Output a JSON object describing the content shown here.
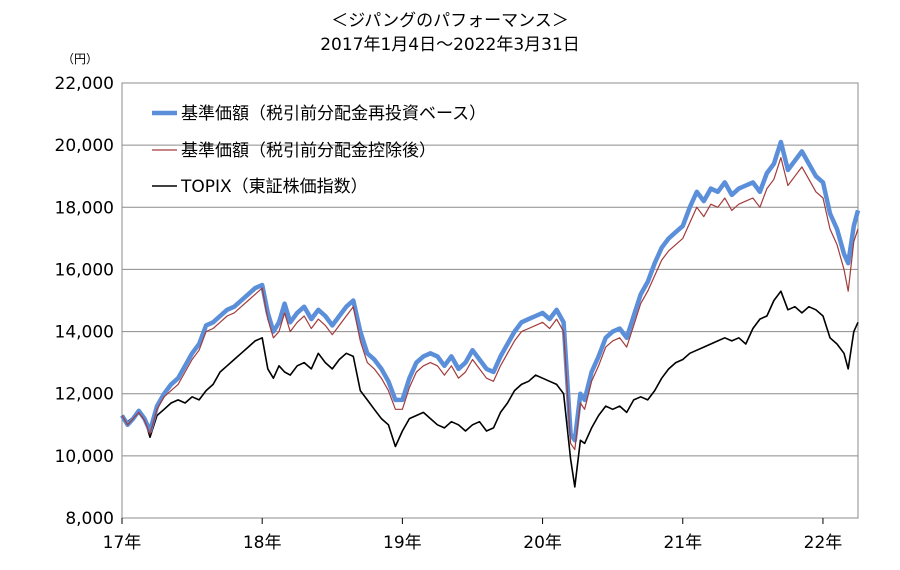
{
  "title": "＜ジパングのパフォーマンス＞",
  "subtitle": "2017年1月4日～2022年3月31日",
  "unit": "（円）",
  "chart_data": {
    "type": "line",
    "title": "＜ジパングのパフォーマンス＞",
    "subtitle": "2017年1月4日～2022年3月31日",
    "ylabel": "（円）",
    "xlabel": "",
    "ylim": [
      8000,
      22000
    ],
    "yticks": [
      "8,000",
      "10,000",
      "12,000",
      "14,000",
      "16,000",
      "18,000",
      "20,000",
      "22,000"
    ],
    "ytick_values": [
      8000,
      10000,
      12000,
      14000,
      16000,
      18000,
      20000,
      22000
    ],
    "xlim": [
      2017.0,
      2022.25
    ],
    "xticks": [
      "17年",
      "18年",
      "19年",
      "20年",
      "21年",
      "22年"
    ],
    "xtick_values": [
      2017,
      2018,
      2019,
      2020,
      2021,
      2022
    ],
    "grid": "horizontal",
    "legend_position": "top-left",
    "series": [
      {
        "name": "基準価額（税引前分配金再投資ベース）",
        "color": "#5b8fd9",
        "style": "thick",
        "x": [
          2017.0,
          2017.04,
          2017.08,
          2017.12,
          2017.16,
          2017.2,
          2017.25,
          2017.3,
          2017.35,
          2017.4,
          2017.45,
          2017.5,
          2017.55,
          2017.6,
          2017.65,
          2017.7,
          2017.75,
          2017.8,
          2017.85,
          2017.9,
          2017.95,
          2018.0,
          2018.04,
          2018.08,
          2018.12,
          2018.16,
          2018.2,
          2018.25,
          2018.3,
          2018.35,
          2018.4,
          2018.45,
          2018.5,
          2018.55,
          2018.6,
          2018.65,
          2018.7,
          2018.75,
          2018.8,
          2018.85,
          2018.9,
          2018.95,
          2019.0,
          2019.05,
          2019.1,
          2019.15,
          2019.2,
          2019.25,
          2019.3,
          2019.35,
          2019.4,
          2019.45,
          2019.5,
          2019.55,
          2019.6,
          2019.65,
          2019.7,
          2019.75,
          2019.8,
          2019.85,
          2019.9,
          2019.95,
          2020.0,
          2020.05,
          2020.1,
          2020.15,
          2020.2,
          2020.23,
          2020.27,
          2020.3,
          2020.35,
          2020.4,
          2020.45,
          2020.5,
          2020.55,
          2020.6,
          2020.65,
          2020.7,
          2020.75,
          2020.8,
          2020.85,
          2020.9,
          2020.95,
          2021.0,
          2021.05,
          2021.1,
          2021.15,
          2021.2,
          2021.25,
          2021.3,
          2021.35,
          2021.4,
          2021.45,
          2021.5,
          2021.55,
          2021.6,
          2021.65,
          2021.7,
          2021.75,
          2021.8,
          2021.85,
          2021.9,
          2021.95,
          2022.0,
          2022.05,
          2022.1,
          2022.15,
          2022.18,
          2022.22,
          2022.25
        ],
        "values": [
          11300,
          11000,
          11200,
          11450,
          11200,
          10800,
          11600,
          12000,
          12300,
          12500,
          12900,
          13300,
          13600,
          14200,
          14300,
          14500,
          14700,
          14800,
          15000,
          15200,
          15400,
          15500,
          14600,
          14000,
          14300,
          14900,
          14300,
          14600,
          14800,
          14400,
          14700,
          14500,
          14200,
          14500,
          14800,
          15000,
          14000,
          13300,
          13100,
          12800,
          12400,
          11800,
          11800,
          12500,
          13000,
          13200,
          13300,
          13200,
          12900,
          13200,
          12800,
          13000,
          13400,
          13100,
          12800,
          12700,
          13200,
          13600,
          14000,
          14300,
          14400,
          14500,
          14600,
          14400,
          14700,
          14300,
          10700,
          10500,
          12000,
          11800,
          12700,
          13200,
          13800,
          14000,
          14100,
          13800,
          14500,
          15200,
          15600,
          16200,
          16700,
          17000,
          17200,
          17400,
          18000,
          18500,
          18200,
          18600,
          18500,
          18800,
          18400,
          18600,
          18700,
          18800,
          18500,
          19100,
          19400,
          20100,
          19200,
          19500,
          19800,
          19400,
          19000,
          18800,
          17800,
          17300,
          16500,
          16200,
          17400,
          17900
        ]
      },
      {
        "name": "基準価額（税引前分配金控除後）",
        "color": "#a33b3b",
        "style": "thin",
        "x": [
          2017.0,
          2017.04,
          2017.08,
          2017.12,
          2017.16,
          2017.2,
          2017.25,
          2017.3,
          2017.35,
          2017.4,
          2017.45,
          2017.5,
          2017.55,
          2017.6,
          2017.65,
          2017.7,
          2017.75,
          2017.8,
          2017.85,
          2017.9,
          2017.95,
          2018.0,
          2018.04,
          2018.08,
          2018.12,
          2018.16,
          2018.2,
          2018.25,
          2018.3,
          2018.35,
          2018.4,
          2018.45,
          2018.5,
          2018.55,
          2018.6,
          2018.65,
          2018.7,
          2018.75,
          2018.8,
          2018.85,
          2018.9,
          2018.95,
          2019.0,
          2019.05,
          2019.1,
          2019.15,
          2019.2,
          2019.25,
          2019.3,
          2019.35,
          2019.4,
          2019.45,
          2019.5,
          2019.55,
          2019.6,
          2019.65,
          2019.7,
          2019.75,
          2019.8,
          2019.85,
          2019.9,
          2019.95,
          2020.0,
          2020.05,
          2020.1,
          2020.15,
          2020.2,
          2020.23,
          2020.27,
          2020.3,
          2020.35,
          2020.4,
          2020.45,
          2020.5,
          2020.55,
          2020.6,
          2020.65,
          2020.7,
          2020.75,
          2020.8,
          2020.85,
          2020.9,
          2020.95,
          2021.0,
          2021.05,
          2021.1,
          2021.15,
          2021.2,
          2021.25,
          2021.3,
          2021.35,
          2021.4,
          2021.45,
          2021.5,
          2021.55,
          2021.6,
          2021.65,
          2021.7,
          2021.75,
          2021.8,
          2021.85,
          2021.9,
          2021.95,
          2022.0,
          2022.05,
          2022.1,
          2022.15,
          2022.18,
          2022.22,
          2022.25
        ],
        "values": [
          11300,
          11000,
          11200,
          11400,
          11150,
          10700,
          11500,
          11900,
          12100,
          12300,
          12700,
          13100,
          13400,
          14000,
          14100,
          14300,
          14500,
          14600,
          14800,
          15000,
          15200,
          15400,
          14400,
          13800,
          14000,
          14600,
          14000,
          14300,
          14500,
          14100,
          14400,
          14200,
          13900,
          14200,
          14500,
          14800,
          13700,
          13000,
          12800,
          12500,
          12100,
          11500,
          11500,
          12200,
          12700,
          12900,
          13000,
          12900,
          12600,
          12900,
          12500,
          12700,
          13100,
          12800,
          12500,
          12400,
          12900,
          13300,
          13700,
          14000,
          14100,
          14200,
          14300,
          14100,
          14400,
          14000,
          10400,
          10200,
          11700,
          11500,
          12400,
          12900,
          13500,
          13700,
          13800,
          13500,
          14200,
          14900,
          15300,
          15800,
          16300,
          16600,
          16800,
          17000,
          17500,
          18000,
          17700,
          18100,
          18000,
          18300,
          17900,
          18100,
          18200,
          18300,
          18000,
          18600,
          18900,
          19600,
          18700,
          19000,
          19300,
          18900,
          18500,
          18300,
          17300,
          16800,
          16000,
          15300,
          16900,
          17300
        ]
      },
      {
        "name": "TOPIX（東証株価指数）",
        "color": "#000000",
        "style": "medium",
        "x": [
          2017.0,
          2017.04,
          2017.08,
          2017.12,
          2017.16,
          2017.2,
          2017.25,
          2017.3,
          2017.35,
          2017.4,
          2017.45,
          2017.5,
          2017.55,
          2017.6,
          2017.65,
          2017.7,
          2017.75,
          2017.8,
          2017.85,
          2017.9,
          2017.95,
          2018.0,
          2018.04,
          2018.08,
          2018.12,
          2018.16,
          2018.2,
          2018.25,
          2018.3,
          2018.35,
          2018.4,
          2018.45,
          2018.5,
          2018.55,
          2018.6,
          2018.65,
          2018.7,
          2018.75,
          2018.8,
          2018.85,
          2018.9,
          2018.95,
          2019.0,
          2019.05,
          2019.1,
          2019.15,
          2019.2,
          2019.25,
          2019.3,
          2019.35,
          2019.4,
          2019.45,
          2019.5,
          2019.55,
          2019.6,
          2019.65,
          2019.7,
          2019.75,
          2019.8,
          2019.85,
          2019.9,
          2019.95,
          2020.0,
          2020.05,
          2020.1,
          2020.15,
          2020.2,
          2020.23,
          2020.27,
          2020.3,
          2020.35,
          2020.4,
          2020.45,
          2020.5,
          2020.55,
          2020.6,
          2020.65,
          2020.7,
          2020.75,
          2020.8,
          2020.85,
          2020.9,
          2020.95,
          2021.0,
          2021.05,
          2021.1,
          2021.15,
          2021.2,
          2021.25,
          2021.3,
          2021.35,
          2021.4,
          2021.45,
          2021.5,
          2021.55,
          2021.6,
          2021.65,
          2021.7,
          2021.75,
          2021.8,
          2021.85,
          2021.9,
          2021.95,
          2022.0,
          2022.05,
          2022.1,
          2022.15,
          2022.18,
          2022.22,
          2022.25
        ],
        "values": [
          11300,
          11100,
          11250,
          11400,
          11200,
          10600,
          11300,
          11500,
          11700,
          11800,
          11700,
          11900,
          11800,
          12100,
          12300,
          12700,
          12900,
          13100,
          13300,
          13500,
          13700,
          13800,
          12800,
          12500,
          12900,
          12700,
          12600,
          12900,
          13000,
          12800,
          13300,
          13000,
          12800,
          13100,
          13300,
          13200,
          12100,
          11800,
          11500,
          11200,
          11000,
          10300,
          10800,
          11200,
          11300,
          11400,
          11200,
          11000,
          10900,
          11100,
          11000,
          10800,
          11000,
          11100,
          10800,
          10900,
          11400,
          11700,
          12100,
          12300,
          12400,
          12600,
          12500,
          12400,
          12300,
          12000,
          9900,
          9000,
          10500,
          10400,
          10900,
          11300,
          11600,
          11500,
          11600,
          11400,
          11800,
          11900,
          11800,
          12100,
          12500,
          12800,
          13000,
          13100,
          13300,
          13400,
          13500,
          13600,
          13700,
          13800,
          13700,
          13800,
          13600,
          14100,
          14400,
          14500,
          15000,
          15300,
          14700,
          14800,
          14600,
          14800,
          14700,
          14500,
          13800,
          13600,
          13300,
          12800,
          14000,
          14300
        ]
      }
    ]
  }
}
